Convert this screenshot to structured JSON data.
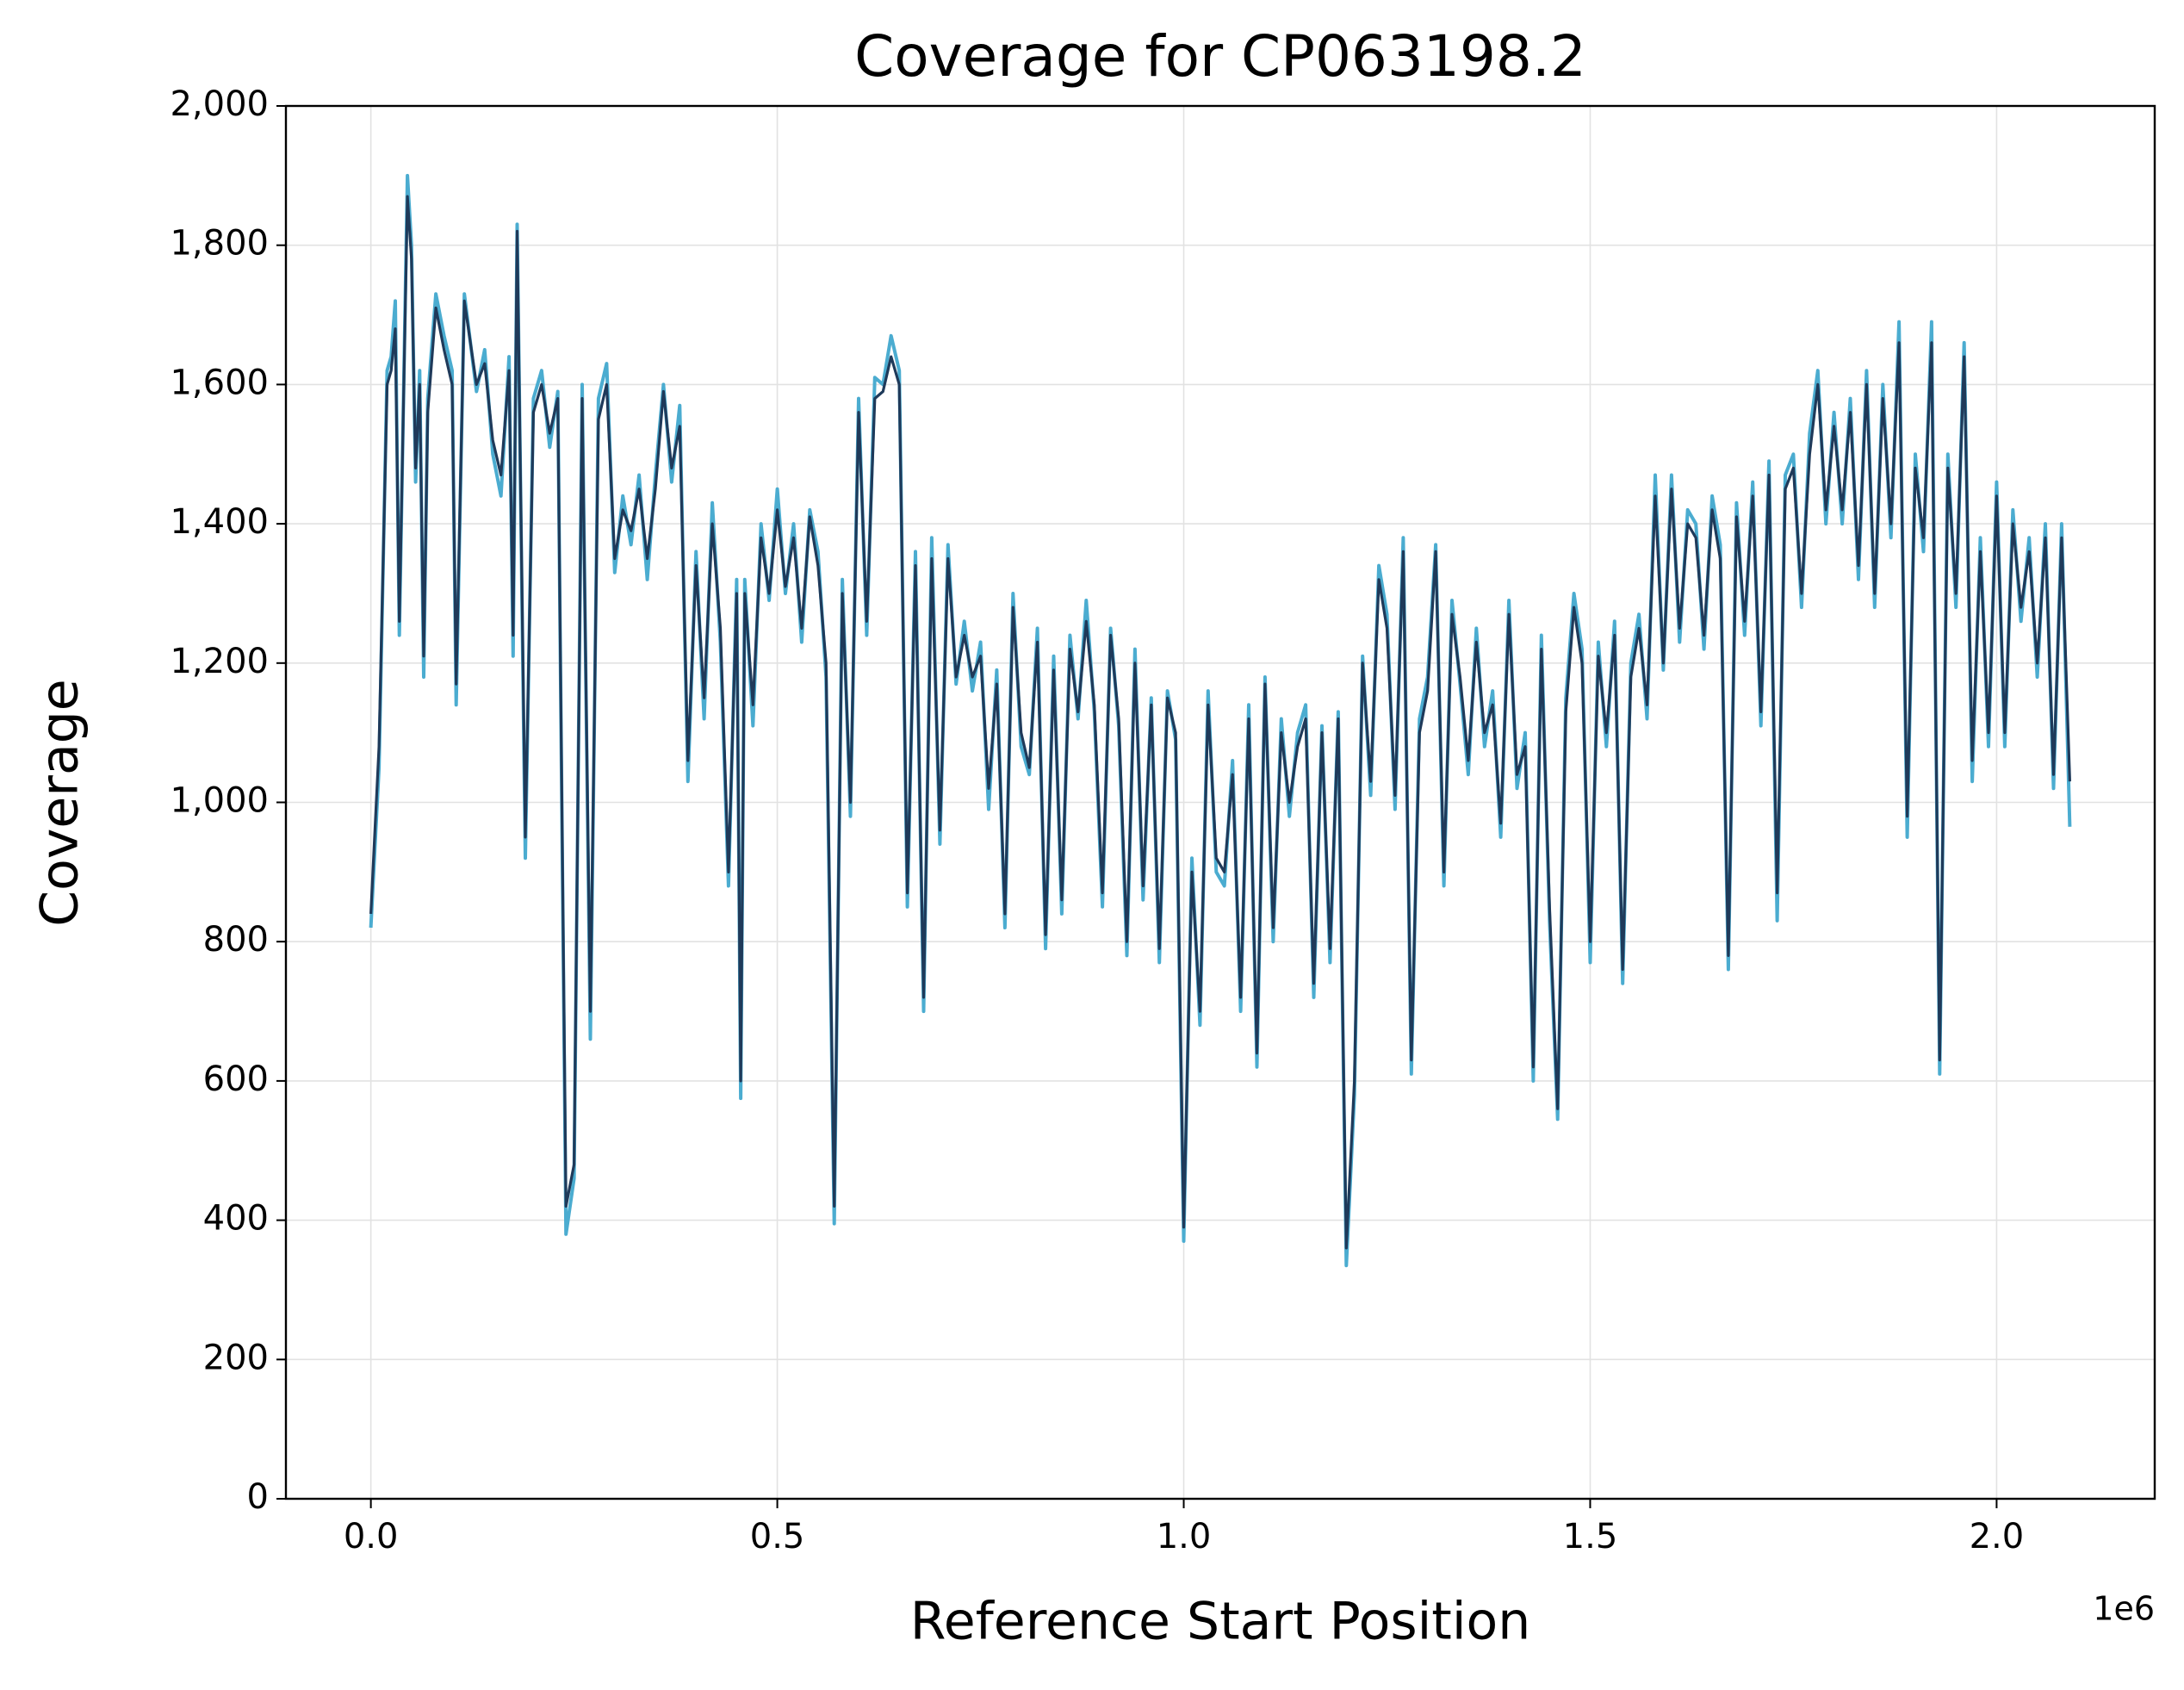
{
  "chart_data": {
    "type": "line",
    "title": "Coverage for CP063198.2",
    "x_label": "Reference Start Position",
    "y_label": "Coverage",
    "x_offset_label": "1e6",
    "xlim": [
      -104500,
      2194500
    ],
    "ylim": [
      0,
      2000
    ],
    "xticks": [
      {
        "value": 0,
        "label": "0.0"
      },
      {
        "value": 500000,
        "label": "0.5"
      },
      {
        "value": 1000000,
        "label": "1.0"
      },
      {
        "value": 1500000,
        "label": "1.5"
      },
      {
        "value": 2000000,
        "label": "2.0"
      }
    ],
    "yticks": [
      0,
      200,
      400,
      600,
      800,
      {
        "value": 1000,
        "label": "1,000"
      },
      {
        "value": 1200,
        "label": "1,200"
      },
      {
        "value": 1400,
        "label": "1,400"
      },
      {
        "value": 1600,
        "label": "1,600"
      },
      {
        "value": 1800,
        "label": "1,800"
      },
      {
        "value": 2000,
        "label": "2,000"
      }
    ],
    "grid": true,
    "x": [
      0,
      10000,
      20000,
      25000,
      30000,
      35000,
      45000,
      50000,
      55000,
      60000,
      65000,
      70000,
      80000,
      90000,
      100000,
      105000,
      115000,
      130000,
      140000,
      150000,
      160000,
      170000,
      175000,
      180000,
      190000,
      200000,
      210000,
      220000,
      230000,
      240000,
      250000,
      260000,
      270000,
      280000,
      290000,
      300000,
      310000,
      320000,
      330000,
      340000,
      350000,
      360000,
      370000,
      380000,
      390000,
      400000,
      410000,
      420000,
      430000,
      440000,
      450000,
      455000,
      460000,
      470000,
      480000,
      490000,
      500000,
      510000,
      520000,
      530000,
      540000,
      550000,
      560000,
      570000,
      580000,
      590000,
      600000,
      610000,
      620000,
      630000,
      640000,
      650000,
      660000,
      670000,
      680000,
      690000,
      700000,
      710000,
      720000,
      730000,
      740000,
      750000,
      760000,
      770000,
      780000,
      790000,
      800000,
      810000,
      820000,
      830000,
      840000,
      850000,
      860000,
      870000,
      880000,
      890000,
      900000,
      910000,
      920000,
      930000,
      940000,
      950000,
      960000,
      970000,
      980000,
      990000,
      1000000,
      1010000,
      1020000,
      1030000,
      1040000,
      1050000,
      1060000,
      1070000,
      1080000,
      1090000,
      1100000,
      1110000,
      1120000,
      1130000,
      1140000,
      1150000,
      1160000,
      1170000,
      1180000,
      1190000,
      1200000,
      1210000,
      1220000,
      1230000,
      1240000,
      1250000,
      1260000,
      1270000,
      1280000,
      1290000,
      1300000,
      1310000,
      1320000,
      1330000,
      1340000,
      1350000,
      1360000,
      1370000,
      1380000,
      1390000,
      1400000,
      1410000,
      1420000,
      1430000,
      1440000,
      1450000,
      1460000,
      1470000,
      1480000,
      1490000,
      1500000,
      1510000,
      1520000,
      1530000,
      1540000,
      1550000,
      1560000,
      1570000,
      1580000,
      1590000,
      1600000,
      1610000,
      1620000,
      1630000,
      1640000,
      1650000,
      1660000,
      1670000,
      1680000,
      1690000,
      1700000,
      1710000,
      1720000,
      1730000,
      1740000,
      1750000,
      1760000,
      1770000,
      1780000,
      1790000,
      1800000,
      1810000,
      1820000,
      1830000,
      1840000,
      1850000,
      1860000,
      1870000,
      1880000,
      1890000,
      1900000,
      1910000,
      1920000,
      1930000,
      1940000,
      1950000,
      1960000,
      1970000,
      1980000,
      1990000,
      2000000,
      2010000,
      2020000,
      2030000,
      2040000,
      2050000,
      2060000,
      2070000,
      2080000,
      2090000
    ],
    "series": [
      {
        "color": "#4bacd0",
        "values": [
          820,
          1050,
          1620,
          1640,
          1720,
          1240,
          1900,
          1800,
          1460,
          1620,
          1180,
          1580,
          1730,
          1670,
          1620,
          1140,
          1730,
          1590,
          1650,
          1500,
          1440,
          1640,
          1210,
          1830,
          920,
          1580,
          1620,
          1510,
          1590,
          380,
          460,
          1600,
          660,
          1580,
          1630,
          1330,
          1440,
          1370,
          1470,
          1320,
          1470,
          1600,
          1460,
          1570,
          1030,
          1360,
          1120,
          1430,
          1230,
          880,
          1320,
          575,
          1320,
          1110,
          1400,
          1290,
          1450,
          1300,
          1400,
          1230,
          1420,
          1360,
          1180,
          395,
          1320,
          980,
          1580,
          1240,
          1610,
          1600,
          1670,
          1620,
          850,
          1360,
          700,
          1380,
          940,
          1370,
          1170,
          1260,
          1160,
          1230,
          990,
          1190,
          820,
          1300,
          1080,
          1040,
          1250,
          790,
          1210,
          840,
          1240,
          1120,
          1290,
          1130,
          850,
          1250,
          1110,
          780,
          1220,
          860,
          1150,
          770,
          1160,
          1090,
          370,
          920,
          680,
          1160,
          900,
          880,
          1060,
          700,
          1140,
          620,
          1180,
          800,
          1120,
          980,
          1100,
          1140,
          720,
          1110,
          770,
          1130,
          335,
          580,
          1210,
          1010,
          1340,
          1270,
          990,
          1380,
          610,
          1120,
          1180,
          1370,
          880,
          1290,
          1170,
          1040,
          1250,
          1080,
          1160,
          950,
          1290,
          1020,
          1100,
          600,
          1240,
          830,
          545,
          1150,
          1300,
          1220,
          770,
          1230,
          1080,
          1260,
          740,
          1200,
          1270,
          1120,
          1470,
          1190,
          1470,
          1230,
          1420,
          1400,
          1220,
          1440,
          1370,
          760,
          1430,
          1240,
          1460,
          1110,
          1490,
          830,
          1470,
          1500,
          1280,
          1530,
          1620,
          1400,
          1560,
          1400,
          1580,
          1320,
          1620,
          1280,
          1600,
          1380,
          1690,
          950,
          1500,
          1360,
          1690,
          610,
          1500,
          1280,
          1660,
          1030,
          1380,
          1080,
          1460,
          1080,
          1420,
          1260,
          1380,
          1180,
          1400,
          1020,
          1400,
          965
        ]
      },
      {
        "color": "#1f3a5a",
        "values": [
          840,
          1080,
          1600,
          1620,
          1680,
          1260,
          1870,
          1780,
          1480,
          1600,
          1210,
          1560,
          1710,
          1650,
          1600,
          1170,
          1720,
          1600,
          1630,
          1520,
          1470,
          1620,
          1240,
          1820,
          950,
          1560,
          1600,
          1530,
          1580,
          420,
          480,
          1580,
          700,
          1550,
          1600,
          1350,
          1420,
          1390,
          1450,
          1350,
          1450,
          1590,
          1480,
          1540,
          1060,
          1340,
          1150,
          1400,
          1250,
          900,
          1300,
          600,
          1300,
          1140,
          1380,
          1300,
          1420,
          1310,
          1380,
          1250,
          1410,
          1340,
          1200,
          420,
          1300,
          1000,
          1560,
          1260,
          1580,
          1590,
          1640,
          1600,
          870,
          1340,
          720,
          1350,
          960,
          1350,
          1180,
          1240,
          1180,
          1210,
          1020,
          1170,
          840,
          1280,
          1100,
          1050,
          1230,
          810,
          1190,
          860,
          1220,
          1130,
          1260,
          1140,
          870,
          1240,
          1120,
          800,
          1200,
          880,
          1140,
          790,
          1150,
          1100,
          390,
          900,
          700,
          1140,
          920,
          900,
          1040,
          720,
          1120,
          640,
          1170,
          820,
          1100,
          1000,
          1080,
          1120,
          740,
          1100,
          790,
          1120,
          360,
          600,
          1200,
          1030,
          1320,
          1250,
          1010,
          1360,
          630,
          1100,
          1160,
          1360,
          900,
          1270,
          1180,
          1060,
          1230,
          1100,
          1140,
          970,
          1270,
          1040,
          1080,
          620,
          1220,
          850,
          560,
          1130,
          1280,
          1200,
          800,
          1210,
          1100,
          1240,
          760,
          1180,
          1250,
          1140,
          1440,
          1200,
          1450,
          1250,
          1400,
          1380,
          1240,
          1420,
          1350,
          780,
          1410,
          1260,
          1440,
          1130,
          1470,
          870,
          1450,
          1480,
          1300,
          1500,
          1600,
          1420,
          1540,
          1420,
          1560,
          1340,
          1600,
          1300,
          1580,
          1400,
          1660,
          980,
          1480,
          1380,
          1660,
          630,
          1480,
          1300,
          1640,
          1060,
          1360,
          1100,
          1440,
          1100,
          1400,
          1280,
          1360,
          1200,
          1380,
          1040,
          1380,
          1030
        ]
      }
    ]
  }
}
